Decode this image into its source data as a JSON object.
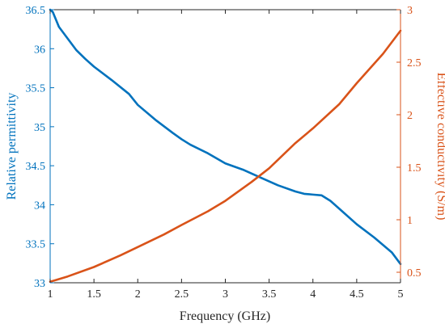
{
  "chart_data": {
    "type": "line",
    "xlabel": "Frequency (GHz)",
    "ylabel_left": "Relative permittivity",
    "ylabel_right": "Effective conductivity (S/m)",
    "xlim": [
      1,
      5
    ],
    "ylim_left": [
      33,
      36.5
    ],
    "ylim_right": [
      0.4,
      3
    ],
    "x_ticks": [
      "1",
      "1.5",
      "2",
      "2.5",
      "3",
      "3.5",
      "4",
      "4.5",
      "5"
    ],
    "y_left_ticks": [
      "33",
      "33.5",
      "34",
      "34.5",
      "35",
      "35.5",
      "36",
      "36.5"
    ],
    "y_right_ticks": [
      "0.5",
      "1",
      "1.5",
      "2",
      "2.5",
      "3"
    ],
    "colors": {
      "left": "#0072BD",
      "right": "#D95319",
      "axes": "#262626"
    },
    "series": [
      {
        "axis": "left",
        "x": [
          1.0,
          1.03,
          1.1,
          1.2,
          1.3,
          1.4,
          1.5,
          1.7,
          1.9,
          2.0,
          2.2,
          2.4,
          2.5,
          2.6,
          2.8,
          3.0,
          3.2,
          3.4,
          3.6,
          3.8,
          3.9,
          4.0,
          4.1,
          4.2,
          4.3,
          4.5,
          4.7,
          4.9,
          5.0
        ],
        "y": [
          36.5,
          36.47,
          36.28,
          36.13,
          35.98,
          35.87,
          35.77,
          35.6,
          35.42,
          35.28,
          35.09,
          34.92,
          34.84,
          34.77,
          34.66,
          34.53,
          34.45,
          34.35,
          34.25,
          34.17,
          34.14,
          34.13,
          34.12,
          34.05,
          33.95,
          33.75,
          33.58,
          33.39,
          33.24
        ]
      },
      {
        "axis": "right",
        "x": [
          1.0,
          1.2,
          1.5,
          1.8,
          2.0,
          2.3,
          2.5,
          2.8,
          3.0,
          3.3,
          3.5,
          3.8,
          4.0,
          4.3,
          4.5,
          4.8,
          5.0
        ],
        "y": [
          0.41,
          0.46,
          0.55,
          0.66,
          0.74,
          0.86,
          0.95,
          1.08,
          1.18,
          1.36,
          1.49,
          1.73,
          1.87,
          2.1,
          2.3,
          2.58,
          2.8
        ]
      }
    ]
  }
}
